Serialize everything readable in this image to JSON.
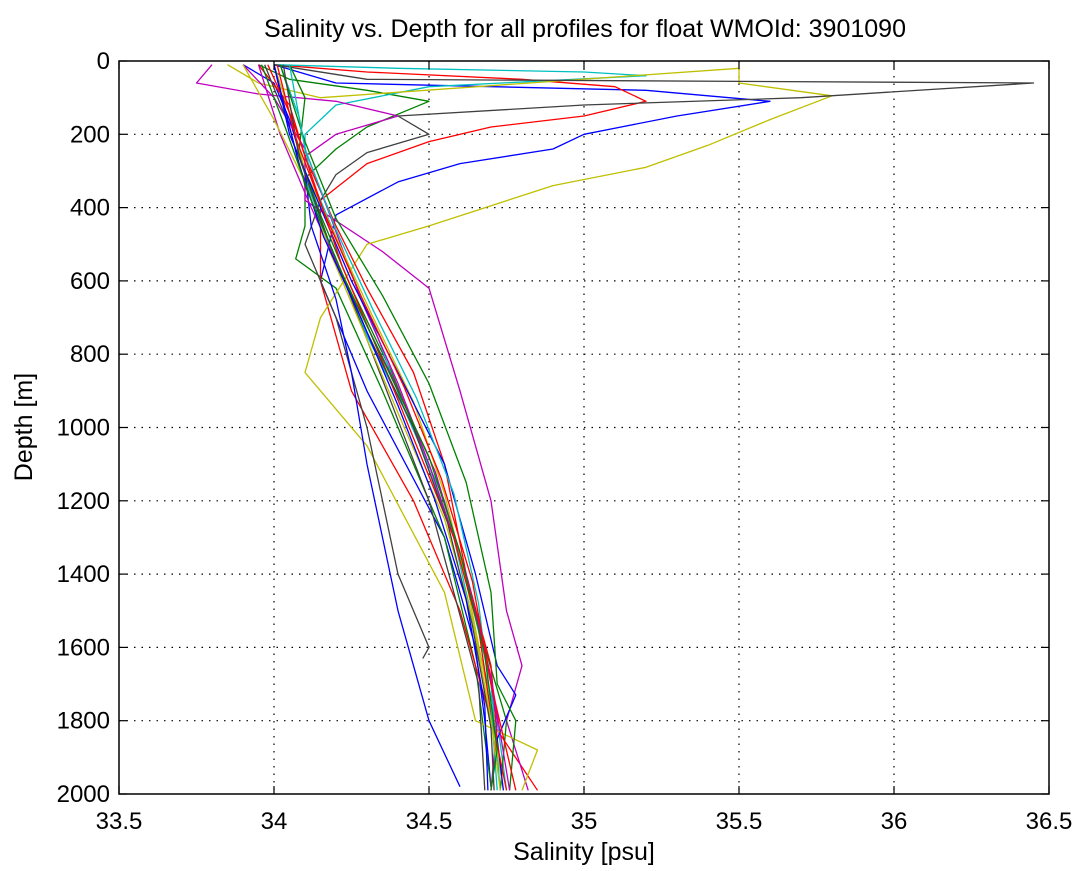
{
  "chart_data": {
    "type": "line",
    "title": "Salinity vs. Depth for all profiles for float WMOId: 3901090",
    "xlabel": "Salinity [psu]",
    "ylabel": "Depth [m]",
    "xlim": [
      33.5,
      36.5
    ],
    "ylim": [
      0,
      2000
    ],
    "y_reversed": true,
    "xticks": [
      33.5,
      34,
      34.5,
      35,
      35.5,
      36,
      36.5
    ],
    "xtick_labels": [
      "33.5",
      "34",
      "34.5",
      "35",
      "35.5",
      "36",
      "36.5"
    ],
    "yticks": [
      0,
      200,
      400,
      600,
      800,
      1000,
      1200,
      1400,
      1600,
      1800,
      2000
    ],
    "ytick_labels": [
      "0",
      "200",
      "400",
      "600",
      "800",
      "1000",
      "1200",
      "1400",
      "1600",
      "1800",
      "2000"
    ],
    "grid": true,
    "series": [
      {
        "color": "#0000ff",
        "points": [
          [
            34.0,
            10
          ],
          [
            34.2,
            60
          ],
          [
            35.2,
            80
          ],
          [
            35.6,
            110
          ],
          [
            35.3,
            150
          ],
          [
            35.0,
            200
          ],
          [
            34.9,
            240
          ],
          [
            34.6,
            280
          ],
          [
            34.4,
            330
          ],
          [
            34.2,
            420
          ],
          [
            34.15,
            600
          ],
          [
            34.3,
            900
          ],
          [
            34.55,
            1300
          ],
          [
            34.65,
            1600
          ],
          [
            34.68,
            1800
          ],
          [
            34.7,
            1980
          ]
        ]
      },
      {
        "color": "#008000",
        "points": [
          [
            33.95,
            10
          ],
          [
            34.05,
            50
          ],
          [
            34.3,
            80
          ],
          [
            34.5,
            110
          ],
          [
            34.3,
            180
          ],
          [
            34.2,
            240
          ],
          [
            34.1,
            320
          ],
          [
            34.1,
            450
          ],
          [
            34.07,
            540
          ],
          [
            34.2,
            620
          ],
          [
            34.35,
            900
          ],
          [
            34.55,
            1300
          ],
          [
            34.65,
            1650
          ],
          [
            34.7,
            1980
          ]
        ]
      },
      {
        "color": "#ff0000",
        "points": [
          [
            34.0,
            10
          ],
          [
            34.3,
            30
          ],
          [
            34.8,
            50
          ],
          [
            35.1,
            70
          ],
          [
            35.2,
            110
          ],
          [
            35.0,
            150
          ],
          [
            34.7,
            180
          ],
          [
            34.5,
            220
          ],
          [
            34.3,
            280
          ],
          [
            34.15,
            380
          ],
          [
            34.15,
            600
          ],
          [
            34.25,
            900
          ],
          [
            34.45,
            1200
          ],
          [
            34.6,
            1500
          ],
          [
            34.7,
            1800
          ],
          [
            34.85,
            1990
          ]
        ]
      },
      {
        "color": "#00bfbf",
        "points": [
          [
            34.0,
            10
          ],
          [
            34.4,
            20
          ],
          [
            35.0,
            30
          ],
          [
            35.2,
            40
          ],
          [
            34.5,
            70
          ],
          [
            34.2,
            120
          ],
          [
            34.1,
            200
          ],
          [
            34.1,
            320
          ],
          [
            34.18,
            500
          ],
          [
            34.3,
            750
          ],
          [
            34.45,
            1000
          ],
          [
            34.58,
            1300
          ],
          [
            34.66,
            1600
          ],
          [
            34.72,
            1800
          ],
          [
            34.75,
            1990
          ]
        ]
      },
      {
        "color": "#bf00bf",
        "points": [
          [
            33.8,
            10
          ],
          [
            33.75,
            60
          ],
          [
            33.95,
            90
          ],
          [
            34.2,
            110
          ],
          [
            34.4,
            150
          ],
          [
            34.2,
            200
          ],
          [
            34.1,
            260
          ],
          [
            34.1,
            380
          ],
          [
            34.35,
            520
          ],
          [
            34.5,
            620
          ],
          [
            34.6,
            900
          ],
          [
            34.7,
            1200
          ],
          [
            34.75,
            1500
          ],
          [
            34.8,
            1650
          ],
          [
            34.75,
            1800
          ],
          [
            34.82,
            1990
          ]
        ]
      },
      {
        "color": "#bfbf00",
        "points": [
          [
            33.85,
            10
          ],
          [
            33.95,
            60
          ],
          [
            34.15,
            100
          ],
          [
            35.5,
            20
          ],
          [
            35.5,
            60
          ],
          [
            35.8,
            95
          ],
          [
            35.6,
            160
          ],
          [
            35.4,
            230
          ],
          [
            35.2,
            290
          ],
          [
            34.9,
            340
          ],
          [
            34.5,
            450
          ],
          [
            34.3,
            500
          ],
          [
            34.15,
            700
          ],
          [
            34.1,
            850
          ],
          [
            34.3,
            1050
          ],
          [
            34.55,
            1450
          ],
          [
            34.65,
            1800
          ],
          [
            34.85,
            1880
          ],
          [
            34.8,
            1990
          ]
        ]
      },
      {
        "color": "#404040",
        "points": [
          [
            34.0,
            10
          ],
          [
            34.3,
            50
          ],
          [
            36.45,
            60
          ],
          [
            35.7,
            100
          ],
          [
            35.0,
            120
          ],
          [
            34.4,
            150
          ],
          [
            34.5,
            200
          ],
          [
            34.3,
            250
          ],
          [
            34.2,
            310
          ],
          [
            34.15,
            380
          ],
          [
            34.1,
            500
          ],
          [
            34.2,
            700
          ],
          [
            34.3,
            1000
          ],
          [
            34.35,
            1200
          ],
          [
            34.4,
            1400
          ],
          [
            34.5,
            1600
          ],
          [
            34.48,
            1630
          ]
        ]
      },
      {
        "color": "#0000ff",
        "points": [
          [
            33.9,
            10
          ],
          [
            34.0,
            60
          ],
          [
            34.05,
            160
          ],
          [
            34.1,
            300
          ],
          [
            34.12,
            450
          ],
          [
            34.2,
            650
          ],
          [
            34.25,
            850
          ],
          [
            34.3,
            1100
          ],
          [
            34.35,
            1300
          ],
          [
            34.4,
            1500
          ],
          [
            34.45,
            1650
          ],
          [
            34.5,
            1800
          ],
          [
            34.6,
            1980
          ]
        ]
      },
      {
        "color": "#008000",
        "points": [
          [
            34.05,
            10
          ],
          [
            34.1,
            100
          ],
          [
            34.08,
            250
          ],
          [
            34.15,
            420
          ],
          [
            34.25,
            620
          ],
          [
            34.38,
            850
          ],
          [
            34.5,
            1100
          ],
          [
            34.6,
            1350
          ],
          [
            34.68,
            1600
          ],
          [
            34.75,
            1800
          ],
          [
            34.73,
            1990
          ]
        ]
      },
      {
        "color": "#ff0000",
        "points": [
          [
            33.95,
            10
          ],
          [
            34.05,
            120
          ],
          [
            34.1,
            260
          ],
          [
            34.2,
            450
          ],
          [
            34.3,
            620
          ],
          [
            34.45,
            850
          ],
          [
            34.55,
            1100
          ],
          [
            34.62,
            1400
          ],
          [
            34.7,
            1650
          ],
          [
            34.72,
            1850
          ],
          [
            34.7,
            1990
          ]
        ]
      },
      {
        "color": "#00bfbf",
        "points": [
          [
            34.02,
            10
          ],
          [
            34.08,
            150
          ],
          [
            34.12,
            320
          ],
          [
            34.22,
            520
          ],
          [
            34.32,
            720
          ],
          [
            34.42,
            950
          ],
          [
            34.55,
            1200
          ],
          [
            34.63,
            1450
          ],
          [
            34.7,
            1700
          ],
          [
            34.73,
            1990
          ]
        ]
      },
      {
        "color": "#bf00bf",
        "points": [
          [
            33.9,
            10
          ],
          [
            34.0,
            100
          ],
          [
            34.1,
            240
          ],
          [
            34.18,
            420
          ],
          [
            34.28,
            650
          ],
          [
            34.4,
            880
          ],
          [
            34.5,
            1100
          ],
          [
            34.6,
            1350
          ],
          [
            34.68,
            1600
          ],
          [
            34.72,
            1800
          ],
          [
            34.7,
            1990
          ]
        ]
      },
      {
        "color": "#bfbf00",
        "points": [
          [
            34.0,
            10
          ],
          [
            34.05,
            140
          ],
          [
            34.1,
            300
          ],
          [
            34.2,
            480
          ],
          [
            34.32,
            700
          ],
          [
            34.45,
            930
          ],
          [
            34.55,
            1180
          ],
          [
            34.62,
            1420
          ],
          [
            34.68,
            1680
          ],
          [
            34.74,
            1990
          ]
        ]
      },
      {
        "color": "#404040",
        "points": [
          [
            33.97,
            10
          ],
          [
            34.05,
            180
          ],
          [
            34.1,
            340
          ],
          [
            34.2,
            540
          ],
          [
            34.3,
            760
          ],
          [
            34.4,
            980
          ],
          [
            34.5,
            1200
          ],
          [
            34.58,
            1450
          ],
          [
            34.66,
            1700
          ],
          [
            34.68,
            1990
          ]
        ]
      },
      {
        "color": "#0000ff",
        "points": [
          [
            34.0,
            10
          ],
          [
            34.05,
            200
          ],
          [
            34.15,
            400
          ],
          [
            34.25,
            600
          ],
          [
            34.4,
            850
          ],
          [
            34.55,
            1100
          ],
          [
            34.65,
            1400
          ],
          [
            34.72,
            1650
          ],
          [
            34.78,
            1730
          ],
          [
            34.72,
            1850
          ],
          [
            34.74,
            1990
          ]
        ]
      },
      {
        "color": "#008000",
        "points": [
          [
            34.02,
            10
          ],
          [
            34.1,
            220
          ],
          [
            34.2,
            430
          ],
          [
            34.35,
            640
          ],
          [
            34.5,
            880
          ],
          [
            34.62,
            1150
          ],
          [
            34.7,
            1450
          ],
          [
            34.72,
            1700
          ],
          [
            34.78,
            1800
          ],
          [
            34.76,
            1990
          ]
        ]
      },
      {
        "color": "#ff0000",
        "points": [
          [
            33.98,
            10
          ],
          [
            34.06,
            160
          ],
          [
            34.14,
            360
          ],
          [
            34.22,
            560
          ],
          [
            34.34,
            800
          ],
          [
            34.46,
            1050
          ],
          [
            34.58,
            1300
          ],
          [
            34.66,
            1550
          ],
          [
            34.7,
            1780
          ],
          [
            34.75,
            1990
          ]
        ]
      },
      {
        "color": "#00bfbf",
        "points": [
          [
            34.05,
            10
          ],
          [
            34.1,
            240
          ],
          [
            34.2,
            460
          ],
          [
            34.32,
            680
          ],
          [
            34.46,
            920
          ],
          [
            34.58,
            1180
          ],
          [
            34.66,
            1480
          ],
          [
            34.7,
            1760
          ],
          [
            34.72,
            1990
          ]
        ]
      },
      {
        "color": "#bf00bf",
        "points": [
          [
            33.95,
            10
          ],
          [
            34.02,
            200
          ],
          [
            34.12,
            400
          ],
          [
            34.24,
            620
          ],
          [
            34.38,
            860
          ],
          [
            34.52,
            1120
          ],
          [
            34.62,
            1400
          ],
          [
            34.7,
            1680
          ],
          [
            34.76,
            1990
          ]
        ]
      },
      {
        "color": "#bfbf00",
        "points": [
          [
            33.9,
            10
          ],
          [
            34.0,
            160
          ],
          [
            34.1,
            330
          ],
          [
            34.18,
            520
          ],
          [
            34.3,
            760
          ],
          [
            34.42,
            1000
          ],
          [
            34.55,
            1250
          ],
          [
            34.64,
            1520
          ],
          [
            34.7,
            1800
          ],
          [
            34.73,
            1990
          ]
        ]
      },
      {
        "color": "#404040",
        "points": [
          [
            34.03,
            10
          ],
          [
            34.08,
            260
          ],
          [
            34.18,
            500
          ],
          [
            34.3,
            740
          ],
          [
            34.45,
            1000
          ],
          [
            34.56,
            1260
          ],
          [
            34.64,
            1540
          ],
          [
            34.7,
            1820
          ],
          [
            34.71,
            1990
          ]
        ]
      },
      {
        "color": "#0000ff",
        "points": [
          [
            34.0,
            10
          ],
          [
            34.08,
            280
          ],
          [
            34.16,
            480
          ],
          [
            34.28,
            700
          ],
          [
            34.4,
            940
          ],
          [
            34.52,
            1200
          ],
          [
            34.62,
            1470
          ],
          [
            34.68,
            1760
          ],
          [
            34.69,
            1990
          ]
        ]
      },
      {
        "color": "#008000",
        "points": [
          [
            33.96,
            10
          ],
          [
            34.04,
            190
          ],
          [
            34.12,
            380
          ],
          [
            34.22,
            580
          ],
          [
            34.36,
            830
          ],
          [
            34.5,
            1080
          ],
          [
            34.6,
            1340
          ],
          [
            34.68,
            1620
          ],
          [
            34.72,
            1880
          ],
          [
            34.7,
            1990
          ]
        ]
      },
      {
        "color": "#ff0000",
        "points": [
          [
            34.01,
            10
          ],
          [
            34.07,
            210
          ],
          [
            34.16,
            410
          ],
          [
            34.28,
            640
          ],
          [
            34.42,
            890
          ],
          [
            34.54,
            1140
          ],
          [
            34.64,
            1420
          ],
          [
            34.7,
            1700
          ],
          [
            34.78,
            1990
          ]
        ]
      }
    ]
  }
}
